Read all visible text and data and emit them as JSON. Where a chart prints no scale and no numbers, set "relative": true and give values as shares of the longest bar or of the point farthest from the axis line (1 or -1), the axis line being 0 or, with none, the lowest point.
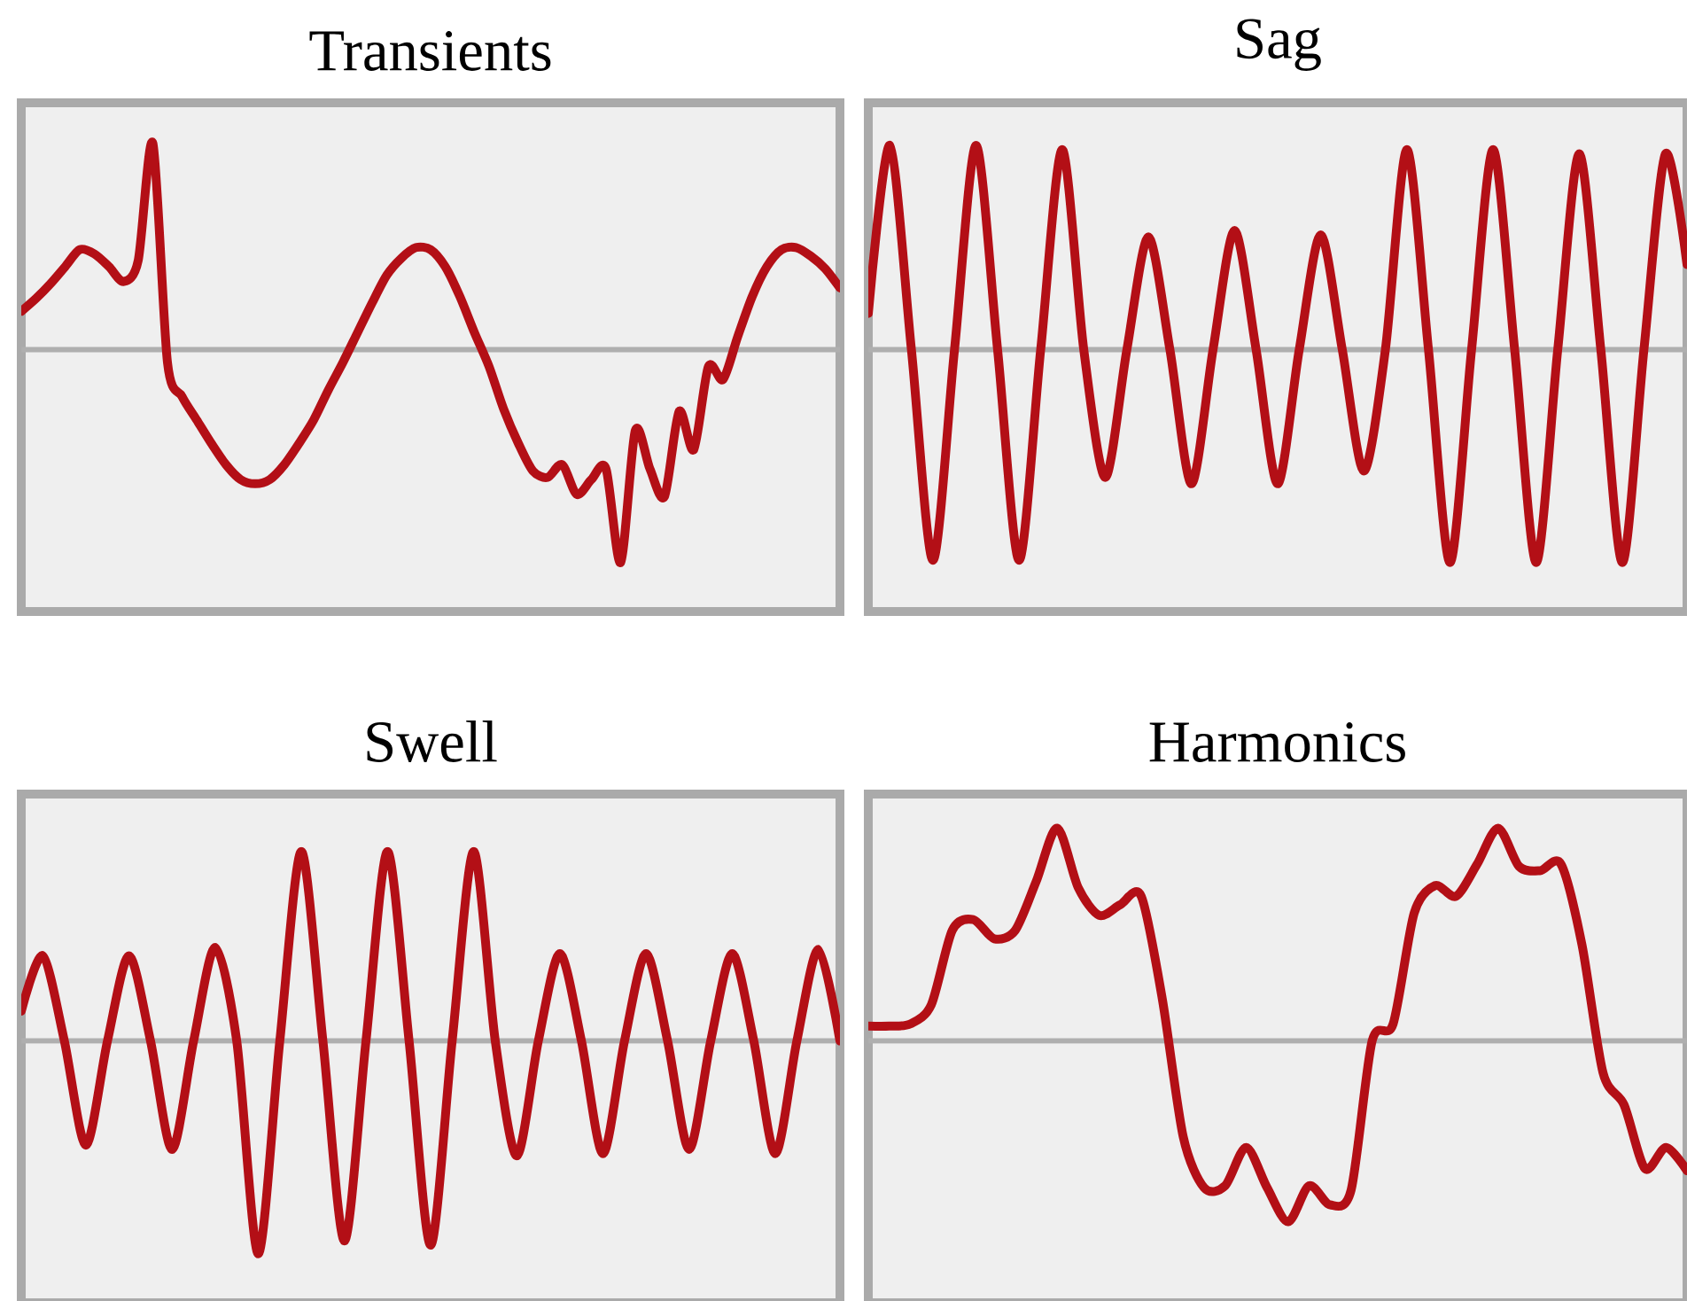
{
  "chart_data": [
    {
      "type": "line",
      "title": "Transients",
      "relative": true,
      "categories": [
        null,
        null,
        null,
        null,
        null,
        null,
        null,
        null,
        null,
        null,
        null,
        null,
        null,
        null,
        null,
        null,
        null,
        null,
        null,
        null,
        null,
        null,
        null,
        null,
        null,
        null,
        null,
        null,
        null,
        null,
        null,
        null,
        null,
        null,
        null,
        null,
        null,
        null,
        null,
        null,
        null,
        null,
        null,
        null,
        null,
        null,
        null,
        null,
        null,
        null,
        null,
        null,
        null,
        null,
        null,
        null,
        null
      ],
      "series": [
        {
          "color": "#b30f16",
          "values": [
            0.18,
            0.24,
            0.31,
            0.39,
            0.47,
            0.45,
            0.39,
            0.32,
            0.42,
            0.97,
            -0.06,
            -0.22,
            -0.33,
            -0.44,
            -0.54,
            -0.61,
            -0.63,
            -0.61,
            -0.54,
            -0.44,
            -0.33,
            -0.19,
            -0.06,
            0.08,
            0.22,
            0.35,
            0.43,
            0.48,
            0.47,
            0.39,
            0.25,
            0.08,
            -0.08,
            -0.28,
            -0.44,
            -0.57,
            -0.6,
            -0.54,
            -0.68,
            -0.61,
            -0.56,
            -1,
            -0.38,
            -0.56,
            -0.69,
            -0.29,
            -0.47,
            -0.08,
            -0.14,
            0.06,
            0.25,
            0.39,
            0.47,
            0.48,
            0.44,
            0.38,
            0.29
          ]
        }
      ]
    },
    {
      "type": "line",
      "title": "Sag",
      "relative": true,
      "categories": [
        null,
        null,
        null,
        null,
        null,
        null,
        null,
        null,
        null,
        null,
        null,
        null,
        null,
        null,
        null,
        null,
        null,
        null,
        null,
        null,
        null,
        null,
        null,
        null,
        null,
        null,
        null,
        null,
        null,
        null,
        null,
        null,
        null,
        null,
        null,
        null,
        null,
        null,
        null
      ],
      "series": [
        {
          "color": "#b30f16",
          "values": [
            0.17,
            0.96,
            0,
            -0.99,
            0,
            0.96,
            0,
            -0.99,
            0,
            0.94,
            0,
            -0.6,
            0,
            0.53,
            0,
            -0.63,
            0,
            0.56,
            0,
            -0.63,
            0,
            0.54,
            0,
            -0.57,
            0,
            0.94,
            0,
            -1,
            0,
            0.94,
            0,
            -1,
            0,
            0.92,
            0,
            -1,
            0,
            0.92,
            0.4
          ]
        }
      ]
    },
    {
      "type": "line",
      "title": "Swell",
      "relative": true,
      "categories": [
        null,
        null,
        null,
        null,
        null,
        null,
        null,
        null,
        null,
        null,
        null,
        null,
        null,
        null,
        null,
        null,
        null,
        null,
        null,
        null,
        null,
        null,
        null,
        null,
        null,
        null,
        null,
        null,
        null,
        null,
        null,
        null,
        null,
        null,
        null,
        null,
        null,
        null,
        null
      ],
      "series": [
        {
          "color": "#b30f16",
          "values": [
            0.14,
            0.4,
            0,
            -0.49,
            0,
            0.4,
            0,
            -0.51,
            0,
            0.44,
            0,
            -1,
            0,
            0.89,
            0,
            -0.94,
            0,
            0.89,
            0,
            -0.96,
            0,
            0.89,
            0,
            -0.54,
            0,
            0.41,
            0,
            -0.53,
            0,
            0.41,
            0,
            -0.51,
            0,
            0.41,
            0,
            -0.53,
            0,
            0.43,
            0
          ]
        }
      ]
    },
    {
      "type": "line",
      "title": "Harmonics",
      "relative": true,
      "categories": [
        null,
        null,
        null,
        null,
        null,
        null,
        null,
        null,
        null,
        null,
        null,
        null,
        null,
        null,
        null,
        null,
        null,
        null,
        null,
        null,
        null,
        null,
        null,
        null,
        null,
        null,
        null,
        null,
        null,
        null,
        null,
        null,
        null,
        null,
        null,
        null,
        null,
        null,
        null,
        null
      ],
      "series": [
        {
          "color": "#b30f16",
          "values": [
            0.07,
            0.07,
            0.08,
            0.17,
            0.52,
            0.57,
            0.48,
            0.52,
            0.75,
            1,
            0.72,
            0.59,
            0.64,
            0.68,
            0.2,
            -0.45,
            -0.69,
            -0.68,
            -0.5,
            -0.69,
            -0.85,
            -0.68,
            -0.77,
            -0.7,
            0,
            0.08,
            0.6,
            0.73,
            0.68,
            0.83,
            1,
            0.82,
            0.8,
            0.83,
            0.45,
            -0.15,
            -0.3,
            -0.6,
            -0.5,
            -0.61
          ]
        }
      ]
    }
  ]
}
